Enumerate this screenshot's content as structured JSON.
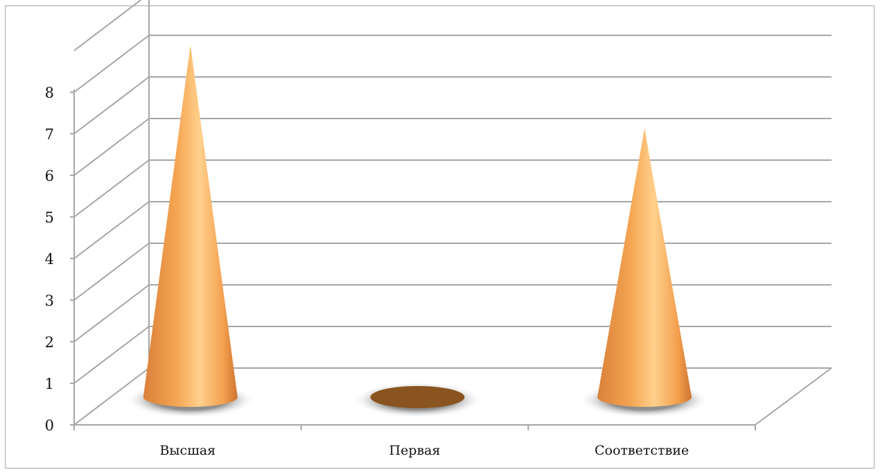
{
  "chart_data": {
    "type": "bar",
    "style": "3d-cone",
    "categories": [
      "Высшая",
      "Первая",
      "Соответствие"
    ],
    "values": [
      8,
      0,
      6
    ],
    "ylim": [
      0,
      9
    ],
    "yticks": [
      "0",
      "1",
      "2",
      "3",
      "4",
      "5",
      "6",
      "7",
      "8"
    ],
    "grid": true,
    "legend": "none",
    "colors": {
      "cone": "#f5a552",
      "cone_highlight": "#ffd08c",
      "zero_disc": "#8a5420",
      "grid": "#a6a6a6"
    }
  }
}
